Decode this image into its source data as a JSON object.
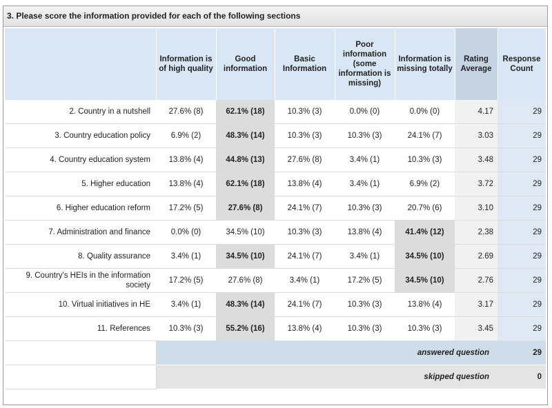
{
  "question": {
    "title": "3. Please score the information provided for each of the following sections"
  },
  "columns": [
    "Information is of high quality",
    "Good information",
    "Basic Information",
    "Poor information (some information is missing)",
    "Information is missing totally",
    "Rating Average",
    "Response Count"
  ],
  "rows": [
    {
      "label": "2. Country in a nutshell",
      "cells": [
        "27.6% (8)",
        "62.1% (18)",
        "10.3% (3)",
        "0.0% (0)",
        "0.0% (0)"
      ],
      "avg": "4.17",
      "count": "29"
    },
    {
      "label": "3. Country education policy",
      "cells": [
        "6.9% (2)",
        "48.3% (14)",
        "10.3% (3)",
        "10.3% (3)",
        "24.1% (7)"
      ],
      "avg": "3.03",
      "count": "29"
    },
    {
      "label": "4. Country education system",
      "cells": [
        "13.8% (4)",
        "44.8% (13)",
        "27.6% (8)",
        "3.4% (1)",
        "10.3% (3)"
      ],
      "avg": "3.48",
      "count": "29"
    },
    {
      "label": "5. Higher education",
      "cells": [
        "13.8% (4)",
        "62.1% (18)",
        "13.8% (4)",
        "3.4% (1)",
        "6.9% (2)"
      ],
      "avg": "3.72",
      "count": "29"
    },
    {
      "label": "6. Higher education reform",
      "cells": [
        "17.2% (5)",
        "27.6% (8)",
        "24.1% (7)",
        "10.3% (3)",
        "20.7% (6)"
      ],
      "avg": "3.10",
      "count": "29"
    },
    {
      "label": "7. Administration and finance",
      "cells": [
        "0.0% (0)",
        "34.5% (10)",
        "10.3% (3)",
        "13.8% (4)",
        "41.4% (12)"
      ],
      "avg": "2.38",
      "count": "29"
    },
    {
      "label": "8. Quality assurance",
      "cells": [
        "3.4% (1)",
        "34.5% (10)",
        "24.1% (7)",
        "3.4% (1)",
        "34.5% (10)"
      ],
      "avg": "2.69",
      "count": "29"
    },
    {
      "label": "9. Country's HEIs in the information society",
      "cells": [
        "17.2% (5)",
        "27.6% (8)",
        "3.4% (1)",
        "17.2% (5)",
        "34.5% (10)"
      ],
      "avg": "2.76",
      "count": "29"
    },
    {
      "label": "10. Virtual initiatives in HE",
      "cells": [
        "3.4% (1)",
        "48.3% (14)",
        "24.1% (7)",
        "10.3% (3)",
        "13.8% (4)"
      ],
      "avg": "3.17",
      "count": "29"
    },
    {
      "label": "11. References",
      "cells": [
        "10.3% (3)",
        "55.2% (16)",
        "13.8% (4)",
        "10.3% (3)",
        "10.3% (3)"
      ],
      "avg": "3.45",
      "count": "29"
    }
  ],
  "summary": {
    "answered_label": "answered question",
    "answered_value": "29",
    "skipped_label": "skipped question",
    "skipped_value": "0"
  }
}
